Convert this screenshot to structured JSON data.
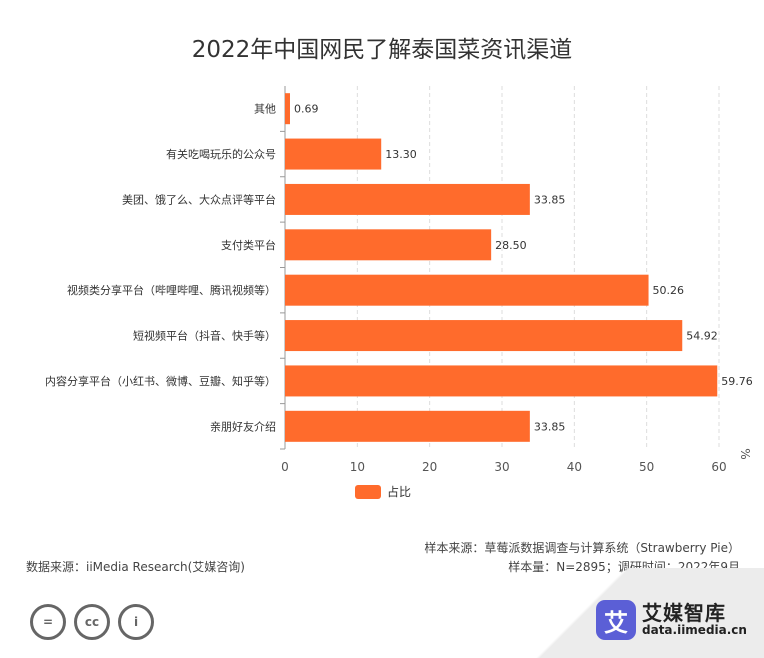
{
  "chart_data": {
    "type": "bar",
    "orientation": "horizontal",
    "title": "2022年中国网民了解泰国菜资讯渠道",
    "categories": [
      "其他",
      "有关吃喝玩乐的公众号",
      "美团、饿了么、大众点评等平台",
      "支付类平台",
      "视频类分享平台（哔哩哔哩、腾讯视频等）",
      "短视频平台（抖音、快手等）",
      "内容分享平台（小红书、微博、豆瓣、知乎等）",
      "亲朋好友介绍"
    ],
    "series": [
      {
        "name": "占比",
        "values": [
          0.69,
          13.3,
          33.85,
          28.5,
          50.26,
          54.92,
          59.76,
          33.85
        ],
        "labels": [
          "0.69",
          "13.30",
          "33.85",
          "28.50",
          "50.26",
          "54.92",
          "59.76",
          "33.85"
        ]
      }
    ],
    "xlim": [
      0,
      60
    ],
    "xticks": [
      0,
      10,
      20,
      30,
      40,
      50,
      60
    ],
    "unit": "%",
    "grid": "vertical dashed",
    "legend": "bottom-center",
    "bar_color": "#ff6b2c"
  },
  "footer": {
    "source": "数据来源：iiMedia Research(艾媒咨询)",
    "sample_source": "样本来源：草莓派数据调查与计算系统（Strawberry Pie）",
    "sample_info": "样本量：N=2895；调研时间：2022年9月"
  },
  "watermark": {
    "mark": "艾",
    "name": "艾媒智库",
    "url": "data.iimedia.cn"
  },
  "cc_icons": [
    "=",
    "cc",
    "i"
  ]
}
